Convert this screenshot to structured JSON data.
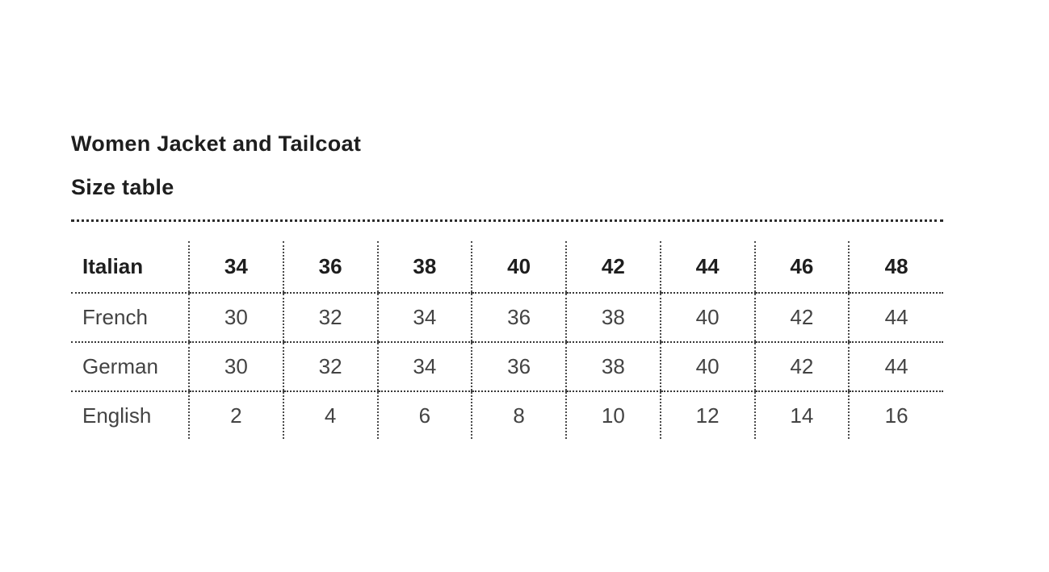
{
  "page": {
    "title": "Women Jacket and Tailcoat",
    "subtitle": "Size table"
  },
  "colors": {
    "background": "#ffffff",
    "heading_text": "#1e1e1e",
    "body_text": "#434343",
    "dotted_line": "#2b2b2b"
  },
  "size_table": {
    "rows": [
      {
        "label": "Italian",
        "values": [
          "34",
          "36",
          "38",
          "40",
          "42",
          "44",
          "46",
          "48"
        ]
      },
      {
        "label": "French",
        "values": [
          "30",
          "32",
          "34",
          "36",
          "38",
          "40",
          "42",
          "44"
        ]
      },
      {
        "label": "German",
        "values": [
          "30",
          "32",
          "34",
          "36",
          "38",
          "40",
          "42",
          "44"
        ]
      },
      {
        "label": "English",
        "values": [
          "2",
          "4",
          "6",
          "8",
          "10",
          "12",
          "14",
          "16"
        ]
      }
    ]
  }
}
